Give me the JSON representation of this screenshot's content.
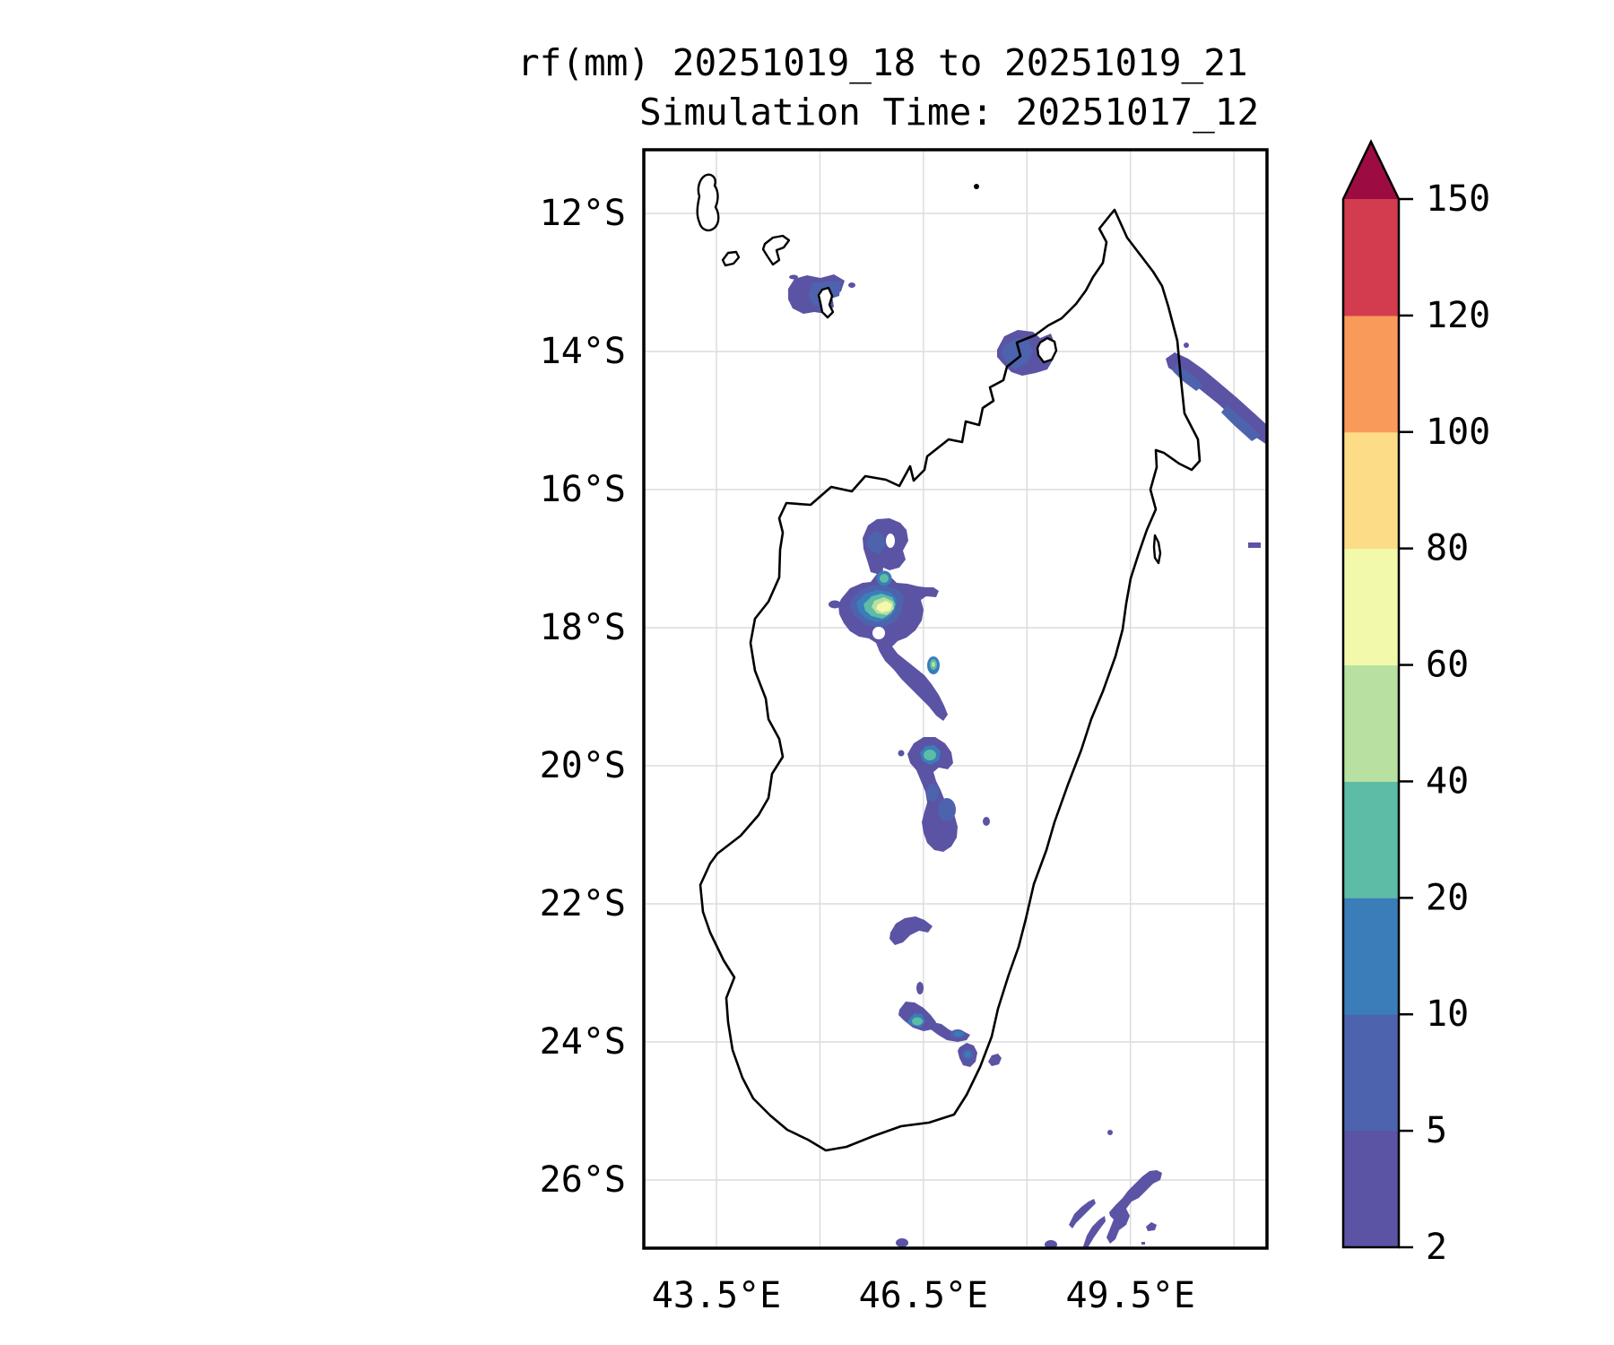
{
  "title": {
    "line1": "rf(mm) 20251019_18 to 20251019_21",
    "line2": "Simulation Time: 20251017_12"
  },
  "map": {
    "x_ticks": [
      {
        "label": "43.5°E",
        "lon": 43.5
      },
      {
        "label": "46.5°E",
        "lon": 46.5
      },
      {
        "label": "49.5°E",
        "lon": 49.5
      }
    ],
    "y_ticks": [
      {
        "label": "12°S",
        "lat": -12
      },
      {
        "label": "14°S",
        "lat": -14
      },
      {
        "label": "16°S",
        "lat": -16
      },
      {
        "label": "18°S",
        "lat": -18
      },
      {
        "label": "20°S",
        "lat": -20
      },
      {
        "label": "22°S",
        "lat": -22
      },
      {
        "label": "24°S",
        "lat": -24
      },
      {
        "label": "26°S",
        "lat": -26
      }
    ],
    "grid_lons": [
      43.5,
      45,
      46.5,
      48,
      49.5,
      51
    ],
    "grid_lats": [
      -12,
      -14,
      -16,
      -18,
      -20,
      -22,
      -24,
      -26
    ],
    "lon_range": [
      42.45,
      51.48
    ],
    "lat_range": [
      -11.08,
      -27.0
    ],
    "region": "Madagascar and Comoros archipelago"
  },
  "colorbar": {
    "unit": "mm",
    "levels": [
      2,
      5,
      10,
      20,
      40,
      60,
      80,
      100,
      120,
      150
    ],
    "tick_labels": [
      "2",
      "5",
      "10",
      "20",
      "40",
      "60",
      "80",
      "100",
      "120",
      "150"
    ],
    "colors": [
      "#5b53a4",
      "#4d63ad",
      "#3a7db9",
      "#5dbca6",
      "#b8e0a1",
      "#f2f9ab",
      "#fcdc86",
      "#f9995a",
      "#d23c4e"
    ],
    "over_color": "#9c0c42",
    "extend": "max"
  },
  "chart_data": {
    "type": "filled-contour-map",
    "variable": "rf (mm) accumulated rainfall",
    "valid_period": "20251019_18 to 20251019_21",
    "simulation_time": "20251017_12",
    "contour_levels_mm": [
      2,
      5,
      10,
      20,
      40,
      60,
      80,
      100,
      120,
      150
    ],
    "lon_range_deg_e": [
      42.45,
      51.48
    ],
    "lat_range_deg_s": [
      11.08,
      27.0
    ],
    "rain_areas": [
      {
        "name": "Mayotte area",
        "lon": 44.9,
        "lat": -13.1,
        "max_band_mm": "5-10"
      },
      {
        "name": "Nosy Be / NW coast",
        "lon": 48.0,
        "lat": -14.0,
        "max_band_mm": "5-10"
      },
      {
        "name": "NE offshore streak",
        "lon": 50.8,
        "lat": -14.7,
        "max_band_mm": "5-10"
      },
      {
        "name": "Central highlands cluster (main core)",
        "lon": 45.9,
        "lat": -17.7,
        "max_band_mm": "60-80"
      },
      {
        "name": "Central cluster secondary core",
        "lon": 46.6,
        "lat": -18.5,
        "max_band_mm": "40-60"
      },
      {
        "name": "20S blob",
        "lon": 46.6,
        "lat": -19.8,
        "max_band_mm": "20-40"
      },
      {
        "name": "22S blob",
        "lon": 46.3,
        "lat": -22.4,
        "max_band_mm": "2-5"
      },
      {
        "name": "24S cluster",
        "lon": 46.6,
        "lat": -23.7,
        "max_band_mm": "20-40"
      },
      {
        "name": "SE offshore 26S cluster",
        "lon": 49.2,
        "lat": -26.5,
        "max_band_mm": "2-5"
      }
    ]
  }
}
